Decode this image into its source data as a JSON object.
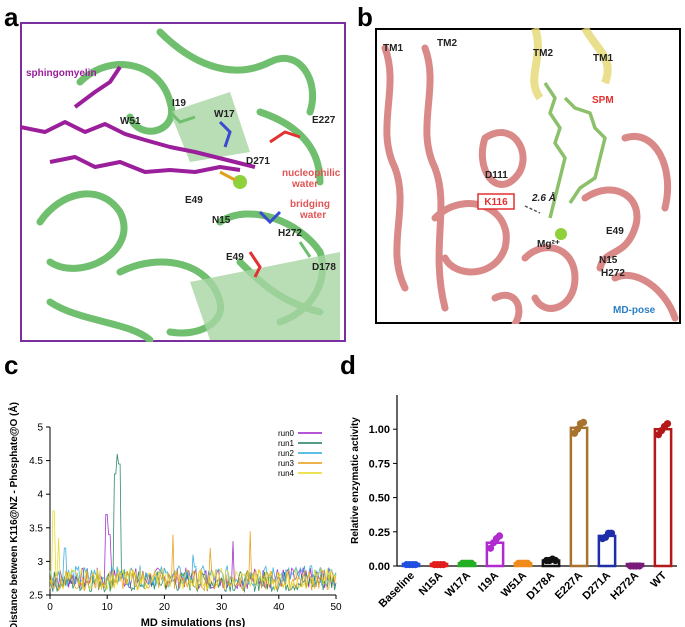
{
  "panel_a": {
    "letter": "a",
    "labels": {
      "sphingomyelin": "sphingomyelin",
      "I19": "I19",
      "W17": "W17",
      "W51": "W51",
      "E227": "E227",
      "D271": "D271",
      "nucleophilic": "nucleophilic",
      "water1": "water",
      "E49a": "E49",
      "N15": "N15",
      "bridging": "bridging",
      "water2": "water",
      "H272": "H272",
      "E49b": "E49",
      "D178": "D178"
    },
    "colors": {
      "frame": "#7b2f9e",
      "protein": "#6fbf6f",
      "ligand": "#9b1e9b",
      "label_red": "#e05555"
    }
  },
  "panel_b": {
    "letter": "b",
    "labels": {
      "TM1_left": "TM1",
      "TM2_left": "TM2",
      "TM2_right": "TM2",
      "TM1_right": "TM1",
      "SPM": "SPM",
      "D111": "D111",
      "K116": "K116",
      "distance": "2.6 Å",
      "mg": "Mg²⁺",
      "E49": "E49",
      "N15": "N15",
      "H272": "H272",
      "MD_pose": "MD-pose"
    },
    "colors": {
      "protein": "#d98a88",
      "yellow": "#e6d870",
      "ligand": "#8cc06a",
      "red_label": "#e33030",
      "blue_label": "#2a7fc6"
    }
  },
  "chart_data": [
    {
      "panel": "c",
      "type": "line",
      "xlabel": "MD simulations (ns)",
      "ylabel": "Distance between K116@NZ - Phosphate@O (Å)",
      "xlim": [
        0,
        50
      ],
      "ylim": [
        2.5,
        5
      ],
      "xticks": [
        0,
        10,
        20,
        30,
        40,
        50
      ],
      "yticks": [
        2.5,
        3,
        3.5,
        4,
        4.5,
        5
      ],
      "legend_position": "top-right",
      "series": [
        {
          "name": "run0",
          "color": "#9b1ec8",
          "baseline": 2.75,
          "spikes": [
            [
              9.8,
              3.7
            ],
            [
              10.3,
              3.4
            ],
            [
              32,
              3.3
            ]
          ]
        },
        {
          "name": "run1",
          "color": "#1a7f5a",
          "baseline": 2.7,
          "spikes": [
            [
              11.4,
              4.3
            ],
            [
              11.8,
              4.6
            ],
            [
              12.1,
              4.45
            ]
          ]
        },
        {
          "name": "run2",
          "color": "#2aa8e0",
          "baseline": 2.78,
          "spikes": [
            [
              2.6,
              3.2
            ],
            [
              25,
              3.1
            ]
          ]
        },
        {
          "name": "run3",
          "color": "#e89a10",
          "baseline": 2.72,
          "spikes": [
            [
              21.5,
              3.4
            ],
            [
              35,
              3.45
            ],
            [
              28,
              3.2
            ]
          ]
        },
        {
          "name": "run4",
          "color": "#e8d820",
          "baseline": 2.74,
          "spikes": [
            [
              0.6,
              3.75
            ],
            [
              1.5,
              3.35
            ]
          ]
        }
      ]
    },
    {
      "panel": "d",
      "type": "bar",
      "ylabel": "Relative enzymatic activity",
      "ylim": [
        0,
        1.25
      ],
      "yticks": [
        "0.00",
        "0.25",
        "0.50",
        "0.75",
        "1.00"
      ],
      "categories": [
        "Baseline",
        "N15A",
        "W17A",
        "I19A",
        "W51A",
        "D178A",
        "E227A",
        "D271A",
        "H272A",
        "WT"
      ],
      "values": [
        0.01,
        0.01,
        0.02,
        0.17,
        0.02,
        0.04,
        1.01,
        0.22,
        0.0,
        1.0
      ],
      "points": [
        [
          0.01,
          0.01,
          0.01,
          0.01
        ],
        [
          0.01,
          0.01,
          0.01,
          0.01
        ],
        [
          0.02,
          0.02,
          0.02,
          0.02
        ],
        [
          0.13,
          0.17,
          0.2,
          0.22
        ],
        [
          0.02,
          0.02,
          0.02,
          0.02
        ],
        [
          0.04,
          0.04,
          0.05,
          0.04
        ],
        [
          0.97,
          1.0,
          1.04,
          1.05
        ],
        [
          0.2,
          0.21,
          0.24,
          0.24
        ],
        [
          0.0,
          0.0,
          0.0,
          0.0
        ],
        [
          0.96,
          0.99,
          1.02,
          1.04
        ]
      ],
      "colors": [
        "#1f4ee0",
        "#e01e1e",
        "#22b022",
        "#b12ad0",
        "#f08a1a",
        "#111111",
        "#a8732e",
        "#1e2ea8",
        "#7a1a7a",
        "#b51818"
      ]
    }
  ],
  "panel_c": {
    "letter": "c"
  },
  "panel_d": {
    "letter": "d"
  }
}
